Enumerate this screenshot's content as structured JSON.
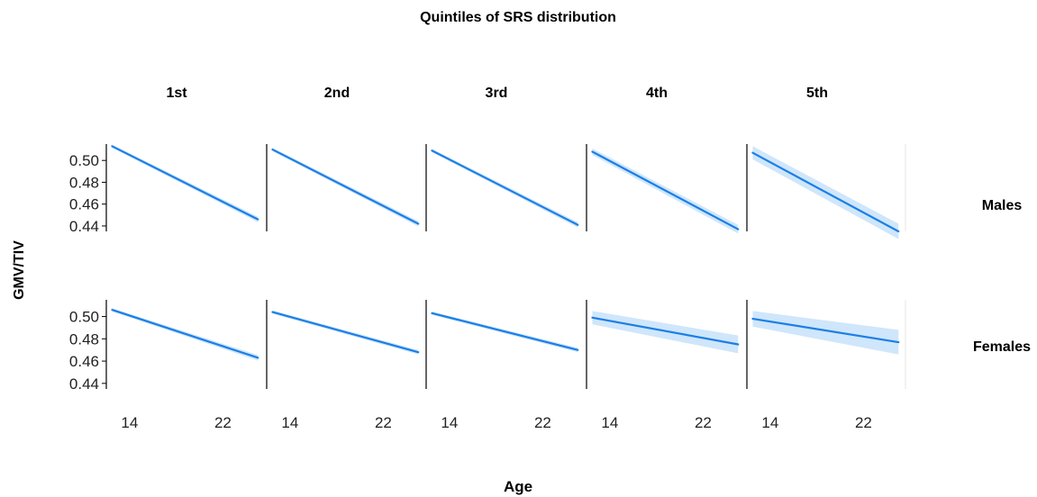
{
  "chart_data": {
    "type": "line",
    "title": "Quintiles of SRS distribution",
    "xlabel": "Age",
    "ylabel": "GMV/TIV",
    "column_labels": [
      "1st",
      "2nd",
      "3rd",
      "4th",
      "5th"
    ],
    "row_labels": [
      "Males",
      "Females"
    ],
    "x_ticks": [
      14,
      22
    ],
    "y_ticks": [
      0.44,
      0.46,
      0.48,
      0.5
    ],
    "y_tick_labels": [
      "0.44",
      "0.46",
      "0.48",
      "0.50"
    ],
    "xlim": [
      12,
      25.6
    ],
    "ylim": [
      0.435,
      0.515
    ],
    "grid": false,
    "line_color": "#1a7fe6",
    "band_color": "#cfe6fb",
    "panels": [
      {
        "row": "Males",
        "column": "1st",
        "x": [
          12.5,
          25.0
        ],
        "y": [
          0.513,
          0.446
        ],
        "ci_halfwidth": [
          0.0015,
          0.0025
        ]
      },
      {
        "row": "Males",
        "column": "2nd",
        "x": [
          12.5,
          25.0
        ],
        "y": [
          0.51,
          0.442
        ],
        "ci_halfwidth": [
          0.0015,
          0.0025
        ]
      },
      {
        "row": "Males",
        "column": "3rd",
        "x": [
          12.5,
          25.0
        ],
        "y": [
          0.509,
          0.441
        ],
        "ci_halfwidth": [
          0.0015,
          0.0025
        ]
      },
      {
        "row": "Males",
        "column": "4th",
        "x": [
          12.5,
          25.0
        ],
        "y": [
          0.508,
          0.437
        ],
        "ci_halfwidth": [
          0.003,
          0.004
        ]
      },
      {
        "row": "Males",
        "column": "5th",
        "x": [
          12.5,
          25.0
        ],
        "y": [
          0.507,
          0.435
        ],
        "ci_halfwidth": [
          0.006,
          0.007
        ]
      },
      {
        "row": "Females",
        "column": "1st",
        "x": [
          12.5,
          25.0
        ],
        "y": [
          0.506,
          0.463
        ],
        "ci_halfwidth": [
          0.0015,
          0.0025
        ]
      },
      {
        "row": "Females",
        "column": "2nd",
        "x": [
          12.5,
          25.0
        ],
        "y": [
          0.504,
          0.468
        ],
        "ci_halfwidth": [
          0.0015,
          0.002
        ]
      },
      {
        "row": "Females",
        "column": "3rd",
        "x": [
          12.5,
          25.0
        ],
        "y": [
          0.503,
          0.47
        ],
        "ci_halfwidth": [
          0.0015,
          0.002
        ]
      },
      {
        "row": "Females",
        "column": "4th",
        "x": [
          12.5,
          25.0
        ],
        "y": [
          0.499,
          0.475
        ],
        "ci_halfwidth": [
          0.006,
          0.008
        ]
      },
      {
        "row": "Females",
        "column": "5th",
        "x": [
          12.5,
          25.0
        ],
        "y": [
          0.498,
          0.477
        ],
        "ci_halfwidth": [
          0.007,
          0.011
        ]
      }
    ]
  }
}
